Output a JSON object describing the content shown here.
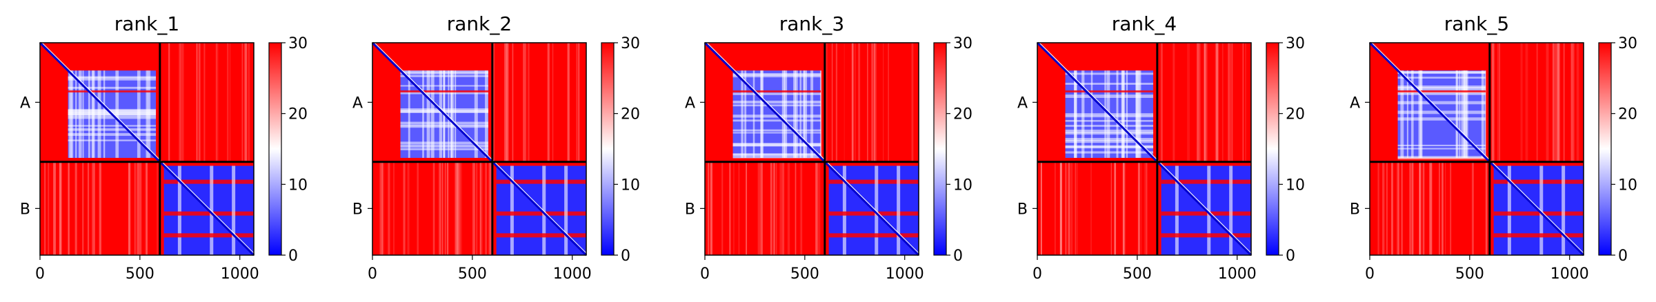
{
  "chart_data": {
    "type": "heatmap",
    "colormap": {
      "name": "bwr",
      "low": "#0000ff",
      "mid": "#ffffff",
      "high": "#ff0000"
    },
    "colorbar": {
      "range": [
        0,
        30
      ],
      "ticks": [
        "0",
        "10",
        "20",
        "30"
      ]
    },
    "x_ticks": [
      0,
      500,
      1000
    ],
    "x_tick_labels": [
      "0",
      "500",
      "1000"
    ],
    "axis_range": [
      0,
      1070
    ],
    "chain_boundary": 600,
    "chains": [
      {
        "label": "A",
        "range": [
          0,
          600
        ]
      },
      {
        "label": "B",
        "range": [
          600,
          1070
        ]
      }
    ],
    "panels": [
      {
        "title": "rank_1"
      },
      {
        "title": "rank_2"
      },
      {
        "title": "rank_3"
      },
      {
        "title": "rank_4"
      },
      {
        "title": "rank_5"
      }
    ]
  }
}
